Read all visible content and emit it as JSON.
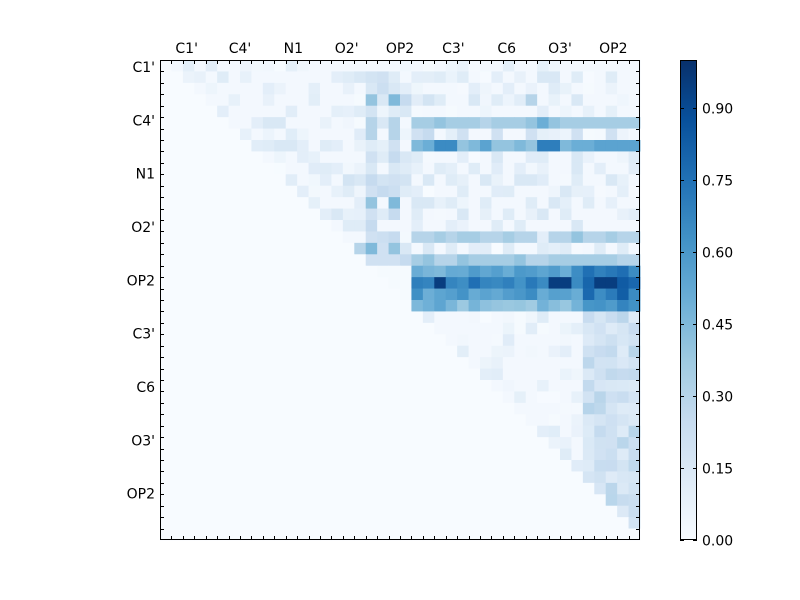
{
  "chart_data": {
    "type": "heatmap",
    "title": "",
    "xlabel": "",
    "ylabel": "",
    "x_tick_labels": [
      "C1'",
      "C4'",
      "N1",
      "O2'",
      "OP2",
      "C3'",
      "C6",
      "O3'",
      "OP2"
    ],
    "y_tick_labels": [
      "C1'",
      "C4'",
      "N1",
      "O2'",
      "OP2",
      "C3'",
      "C6",
      "O3'",
      "OP2"
    ],
    "grid_size": [
      42,
      42
    ],
    "x_tick_position": "top",
    "triangle": "upper",
    "colorbar": {
      "colormap": "Blues",
      "range": [
        0.0,
        1.0
      ],
      "tick_labels": [
        "0.00",
        "0.15",
        "0.30",
        "0.45",
        "0.60",
        "0.75",
        "0.90"
      ],
      "tick_values": [
        0.0,
        0.15,
        0.3,
        0.45,
        0.6,
        0.75,
        0.9
      ],
      "placement": "right"
    },
    "estimated_cells": {
      "note_rows_cols_are_grid_indices": true,
      "strong_band_rows": [
        18,
        19,
        20,
        21
      ],
      "strong_band_start_col": 22,
      "values": [
        [
          1,
          2,
          0.06
        ],
        [
          1,
          5,
          0.12
        ],
        [
          1,
          7,
          0.08
        ],
        [
          1,
          15,
          0.1
        ],
        [
          1,
          16,
          0.12
        ],
        [
          1,
          17,
          0.15
        ],
        [
          1,
          18,
          0.18
        ],
        [
          1,
          19,
          0.2
        ],
        [
          1,
          20,
          0.12
        ],
        [
          1,
          22,
          0.1
        ],
        [
          1,
          24,
          0.12
        ],
        [
          1,
          26,
          0.12
        ],
        [
          1,
          29,
          0.1
        ],
        [
          1,
          33,
          0.15
        ],
        [
          1,
          34,
          0.15
        ],
        [
          1,
          36,
          0.12
        ],
        [
          1,
          39,
          0.12
        ],
        [
          2,
          4,
          0.05
        ],
        [
          2,
          9,
          0.1
        ],
        [
          2,
          10,
          0.06
        ],
        [
          2,
          18,
          0.15
        ],
        [
          2,
          19,
          0.22
        ],
        [
          2,
          20,
          0.15
        ],
        [
          2,
          21,
          0.1
        ],
        [
          2,
          30,
          0.1
        ],
        [
          2,
          34,
          0.12
        ],
        [
          3,
          18,
          0.4
        ],
        [
          3,
          19,
          0.15
        ],
        [
          3,
          20,
          0.45
        ],
        [
          3,
          21,
          0.25
        ],
        [
          3,
          23,
          0.18
        ],
        [
          3,
          24,
          0.12
        ],
        [
          3,
          27,
          0.15
        ],
        [
          3,
          29,
          0.12
        ],
        [
          3,
          32,
          0.3
        ],
        [
          3,
          36,
          0.15
        ],
        [
          4,
          5,
          0.1
        ],
        [
          4,
          17,
          0.12
        ],
        [
          4,
          18,
          0.18
        ],
        [
          4,
          20,
          0.12
        ],
        [
          4,
          21,
          0.15
        ],
        [
          5,
          8,
          0.1
        ],
        [
          5,
          9,
          0.15
        ],
        [
          5,
          10,
          0.15
        ],
        [
          5,
          18,
          0.3
        ],
        [
          5,
          19,
          0.15
        ],
        [
          5,
          20,
          0.3
        ],
        [
          5,
          22,
          0.35
        ],
        [
          5,
          23,
          0.35
        ],
        [
          5,
          24,
          0.4
        ],
        [
          5,
          25,
          0.35
        ],
        [
          5,
          26,
          0.35
        ],
        [
          5,
          27,
          0.35
        ],
        [
          5,
          28,
          0.3
        ],
        [
          5,
          29,
          0.35
        ],
        [
          5,
          30,
          0.35
        ],
        [
          5,
          31,
          0.35
        ],
        [
          5,
          32,
          0.4
        ],
        [
          5,
          33,
          0.5
        ],
        [
          5,
          34,
          0.4
        ],
        [
          5,
          35,
          0.35
        ],
        [
          5,
          36,
          0.35
        ],
        [
          5,
          37,
          0.35
        ],
        [
          5,
          38,
          0.35
        ],
        [
          5,
          39,
          0.35
        ],
        [
          5,
          40,
          0.35
        ],
        [
          5,
          41,
          0.35
        ],
        [
          6,
          7,
          0.08
        ],
        [
          6,
          18,
          0.3
        ],
        [
          6,
          20,
          0.3
        ],
        [
          6,
          22,
          0.2
        ],
        [
          6,
          23,
          0.25
        ],
        [
          6,
          26,
          0.2
        ],
        [
          6,
          29,
          0.2
        ],
        [
          6,
          32,
          0.2
        ],
        [
          6,
          36,
          0.2
        ],
        [
          6,
          39,
          0.2
        ],
        [
          7,
          9,
          0.12
        ],
        [
          7,
          10,
          0.15
        ],
        [
          7,
          11,
          0.15
        ],
        [
          7,
          12,
          0.1
        ],
        [
          7,
          14,
          0.12
        ],
        [
          7,
          15,
          0.1
        ],
        [
          7,
          18,
          0.12
        ],
        [
          7,
          20,
          0.2
        ],
        [
          7,
          22,
          0.45
        ],
        [
          7,
          23,
          0.5
        ],
        [
          7,
          24,
          0.65
        ],
        [
          7,
          25,
          0.65
        ],
        [
          7,
          26,
          0.4
        ],
        [
          7,
          27,
          0.45
        ],
        [
          7,
          28,
          0.55
        ],
        [
          7,
          29,
          0.4
        ],
        [
          7,
          30,
          0.4
        ],
        [
          7,
          31,
          0.45
        ],
        [
          7,
          32,
          0.4
        ],
        [
          7,
          33,
          0.7
        ],
        [
          7,
          34,
          0.7
        ],
        [
          7,
          35,
          0.45
        ],
        [
          7,
          36,
          0.5
        ],
        [
          7,
          37,
          0.5
        ],
        [
          7,
          38,
          0.55
        ],
        [
          7,
          39,
          0.55
        ],
        [
          7,
          40,
          0.55
        ],
        [
          7,
          41,
          0.55
        ],
        [
          8,
          10,
          0.05
        ],
        [
          8,
          13,
          0.08
        ],
        [
          8,
          18,
          0.2
        ],
        [
          8,
          19,
          0.12
        ],
        [
          8,
          20,
          0.25
        ],
        [
          8,
          21,
          0.15
        ],
        [
          8,
          22,
          0.12
        ],
        [
          8,
          26,
          0.1
        ],
        [
          8,
          29,
          0.15
        ],
        [
          8,
          33,
          0.12
        ],
        [
          8,
          36,
          0.15
        ],
        [
          9,
          14,
          0.12
        ],
        [
          9,
          15,
          0.1
        ],
        [
          9,
          18,
          0.15
        ],
        [
          9,
          20,
          0.15
        ],
        [
          9,
          21,
          0.12
        ],
        [
          9,
          22,
          0.08
        ],
        [
          9,
          24,
          0.12
        ],
        [
          9,
          27,
          0.12
        ],
        [
          9,
          31,
          0.1
        ],
        [
          9,
          36,
          0.15
        ],
        [
          10,
          14,
          0.1
        ],
        [
          10,
          16,
          0.18
        ],
        [
          10,
          17,
          0.15
        ],
        [
          10,
          18,
          0.25
        ],
        [
          10,
          19,
          0.18
        ],
        [
          10,
          20,
          0.2
        ],
        [
          10,
          21,
          0.18
        ],
        [
          10,
          23,
          0.15
        ],
        [
          10,
          25,
          0.12
        ],
        [
          10,
          28,
          0.15
        ],
        [
          10,
          31,
          0.15
        ],
        [
          10,
          32,
          0.15
        ],
        [
          10,
          36,
          0.12
        ],
        [
          10,
          39,
          0.15
        ],
        [
          11,
          15,
          0.08
        ],
        [
          11,
          16,
          0.12
        ],
        [
          11,
          18,
          0.2
        ],
        [
          11,
          19,
          0.25
        ],
        [
          11,
          20,
          0.22
        ],
        [
          11,
          21,
          0.12
        ],
        [
          11,
          22,
          0.1
        ],
        [
          11,
          26,
          0.12
        ],
        [
          11,
          30,
          0.12
        ],
        [
          11,
          35,
          0.15
        ],
        [
          12,
          17,
          0.1
        ],
        [
          12,
          18,
          0.4
        ],
        [
          12,
          20,
          0.45
        ],
        [
          12,
          22,
          0.15
        ],
        [
          12,
          23,
          0.15
        ],
        [
          12,
          25,
          0.12
        ],
        [
          12,
          28,
          0.12
        ],
        [
          12,
          32,
          0.12
        ],
        [
          12,
          34,
          0.15
        ],
        [
          12,
          37,
          0.12
        ],
        [
          13,
          15,
          0.15
        ],
        [
          13,
          16,
          0.08
        ],
        [
          13,
          18,
          0.2
        ],
        [
          13,
          19,
          0.12
        ],
        [
          13,
          20,
          0.25
        ],
        [
          13,
          22,
          0.12
        ],
        [
          13,
          26,
          0.15
        ],
        [
          13,
          30,
          0.12
        ],
        [
          13,
          33,
          0.15
        ],
        [
          13,
          35,
          0.12
        ],
        [
          14,
          16,
          0.12
        ],
        [
          14,
          17,
          0.12
        ],
        [
          14,
          18,
          0.25
        ],
        [
          14,
          22,
          0.1
        ],
        [
          14,
          25,
          0.1
        ],
        [
          14,
          29,
          0.12
        ],
        [
          14,
          31,
          0.12
        ],
        [
          14,
          36,
          0.15
        ],
        [
          15,
          18,
          0.2
        ],
        [
          15,
          19,
          0.22
        ],
        [
          15,
          20,
          0.25
        ],
        [
          15,
          22,
          0.3
        ],
        [
          15,
          23,
          0.3
        ],
        [
          15,
          24,
          0.35
        ],
        [
          15,
          25,
          0.3
        ],
        [
          15,
          26,
          0.35
        ],
        [
          15,
          27,
          0.35
        ],
        [
          15,
          28,
          0.3
        ],
        [
          15,
          29,
          0.3
        ],
        [
          15,
          30,
          0.35
        ],
        [
          15,
          31,
          0.3
        ],
        [
          15,
          32,
          0.3
        ],
        [
          15,
          33,
          0.1
        ],
        [
          15,
          34,
          0.3
        ],
        [
          15,
          35,
          0.3
        ],
        [
          15,
          36,
          0.4
        ],
        [
          15,
          37,
          0.3
        ],
        [
          15,
          38,
          0.3
        ],
        [
          15,
          39,
          0.35
        ],
        [
          15,
          40,
          0.3
        ],
        [
          15,
          41,
          0.3
        ],
        [
          16,
          17,
          0.3
        ],
        [
          16,
          18,
          0.45
        ],
        [
          16,
          19,
          0.2
        ],
        [
          16,
          20,
          0.4
        ],
        [
          16,
          21,
          0.15
        ],
        [
          16,
          23,
          0.15
        ],
        [
          16,
          25,
          0.12
        ],
        [
          16,
          27,
          0.1
        ],
        [
          16,
          30,
          0.12
        ],
        [
          16,
          33,
          0.12
        ],
        [
          16,
          35,
          0.12
        ],
        [
          16,
          38,
          0.12
        ],
        [
          16,
          40,
          0.12
        ],
        [
          17,
          18,
          0.2
        ],
        [
          17,
          19,
          0.2
        ],
        [
          17,
          20,
          0.2
        ],
        [
          17,
          21,
          0.25
        ],
        [
          17,
          22,
          0.35
        ],
        [
          17,
          23,
          0.4
        ],
        [
          17,
          24,
          0.3
        ],
        [
          17,
          25,
          0.3
        ],
        [
          17,
          26,
          0.4
        ],
        [
          17,
          27,
          0.35
        ],
        [
          17,
          28,
          0.35
        ],
        [
          17,
          29,
          0.35
        ],
        [
          17,
          30,
          0.35
        ],
        [
          17,
          31,
          0.4
        ],
        [
          17,
          32,
          0.3
        ],
        [
          17,
          33,
          0.3
        ],
        [
          17,
          34,
          0.35
        ],
        [
          17,
          35,
          0.35
        ],
        [
          17,
          36,
          0.35
        ],
        [
          17,
          37,
          0.35
        ],
        [
          17,
          38,
          0.35
        ],
        [
          17,
          39,
          0.35
        ],
        [
          17,
          40,
          0.3
        ],
        [
          17,
          41,
          0.3
        ]
      ]
    }
  }
}
